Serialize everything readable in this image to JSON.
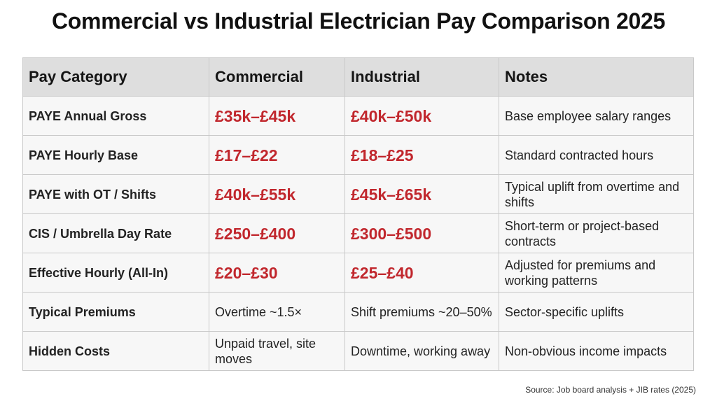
{
  "title": "Commercial vs Industrial Electrician Pay Comparison 2025",
  "accent_color": "#c1272d",
  "headers": [
    "Pay Category",
    "Commercial",
    "Industrial",
    "Notes"
  ],
  "rows": [
    {
      "category": "PAYE Annual Gross",
      "commercial": "£35k–£45k",
      "industrial": "£40k–£50k",
      "notes": "Base employee salary ranges"
    },
    {
      "category": "PAYE Hourly Base",
      "commercial": "£17–£22",
      "industrial": "£18–£25",
      "notes": "Standard contracted hours"
    },
    {
      "category": "PAYE with OT / Shifts",
      "commercial": "£40k–£55k",
      "industrial": "£45k–£65k",
      "notes": "Typical uplift from overtime and shifts"
    },
    {
      "category": "CIS / Umbrella Day Rate",
      "commercial": "£250–£400",
      "industrial": "£300–£500",
      "notes": "Short-term or project-based contracts"
    },
    {
      "category": "Effective Hourly (All-In)",
      "commercial": "£20–£30",
      "industrial": "£25–£40",
      "notes": "Adjusted for premiums and working patterns"
    },
    {
      "category": "Typical Premiums",
      "commercial": "Overtime ~1.5×",
      "industrial": "Shift premiums ~20–50%",
      "notes": "Sector-specific uplifts"
    },
    {
      "category": "Hidden Costs",
      "commercial": "Unpaid travel, site moves",
      "industrial": "Downtime, working away",
      "notes": "Non-obvious income impacts"
    }
  ],
  "source": "Source: Job board analysis + JIB rates (2025)"
}
